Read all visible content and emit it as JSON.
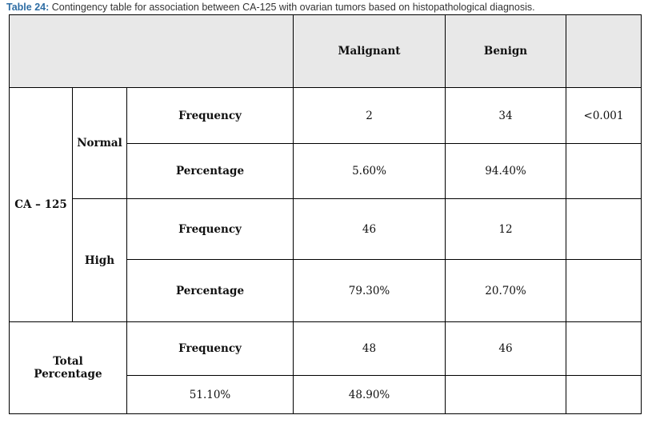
{
  "caption": {
    "label": "Table 24:",
    "text": " Contingency table for association between CA-125 with ovarian tumors based on histopathological diagnosis."
  },
  "table": {
    "columns": [
      "Malignant",
      "Benign"
    ],
    "group_label": "CA – 125",
    "normal": {
      "label": "Normal",
      "frequency_label": "Frequency",
      "frequency": [
        "2",
        "34"
      ],
      "p_value": "<0.001",
      "percentage_label": "Percentage",
      "percentage": [
        "5.60%",
        "94.40%"
      ]
    },
    "high": {
      "label": "High",
      "frequency_label": "Frequency",
      "frequency": [
        "46",
        "12"
      ],
      "percentage_label": "Percentage",
      "percentage": [
        "79.30%",
        "20.70%"
      ]
    },
    "total": {
      "label_line1": "Total",
      "label_line2": "Percentage",
      "frequency_label": "Frequency",
      "frequency": [
        "48",
        "46"
      ],
      "percentage": [
        "51.10%",
        "48.90%"
      ]
    }
  }
}
